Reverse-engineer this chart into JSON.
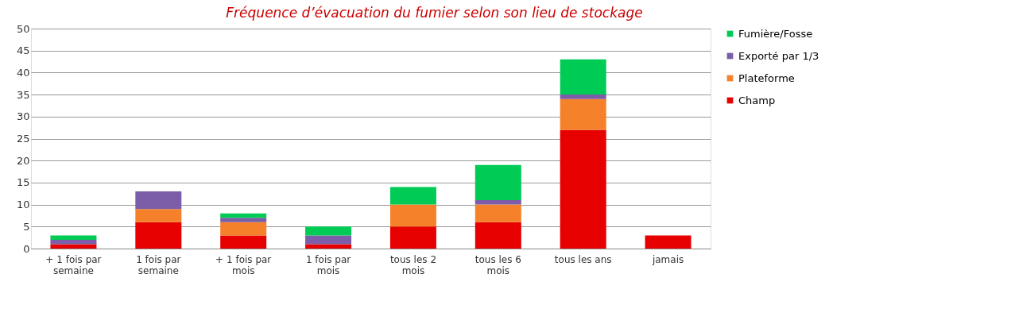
{
  "chart_data": {
    "type": "bar",
    "stacked": true,
    "title": "Fréquence d’évacuation du fumier selon son lieu de stockage",
    "categories": [
      "+ 1 fois par semaine",
      "1 fois par semaine",
      "+ 1 fois par mois",
      "1 fois par mois",
      "tous les 2 mois",
      "tous les 6 mois",
      "tous les ans",
      "jamais"
    ],
    "series": [
      {
        "name": "Champ",
        "color": "#e60000",
        "values": [
          1,
          6,
          3,
          1,
          5,
          6,
          27,
          3
        ]
      },
      {
        "name": "Plateforme",
        "color": "#f5822a",
        "values": [
          0,
          3,
          3,
          0,
          5,
          4,
          7,
          0
        ]
      },
      {
        "name": "Exporté par 1/3",
        "color": "#7b5ea7",
        "values": [
          1,
          4,
          1,
          2,
          0,
          1,
          1,
          0
        ]
      },
      {
        "name": "Fumière/Fosse",
        "color": "#00cc55",
        "values": [
          1,
          0,
          1,
          2,
          4,
          8,
          8,
          0
        ]
      }
    ],
    "ylim": [
      0,
      50
    ],
    "yticks": [
      0,
      5,
      10,
      15,
      20,
      25,
      30,
      35,
      40,
      45,
      50
    ],
    "grid": "y",
    "legend": "right"
  }
}
